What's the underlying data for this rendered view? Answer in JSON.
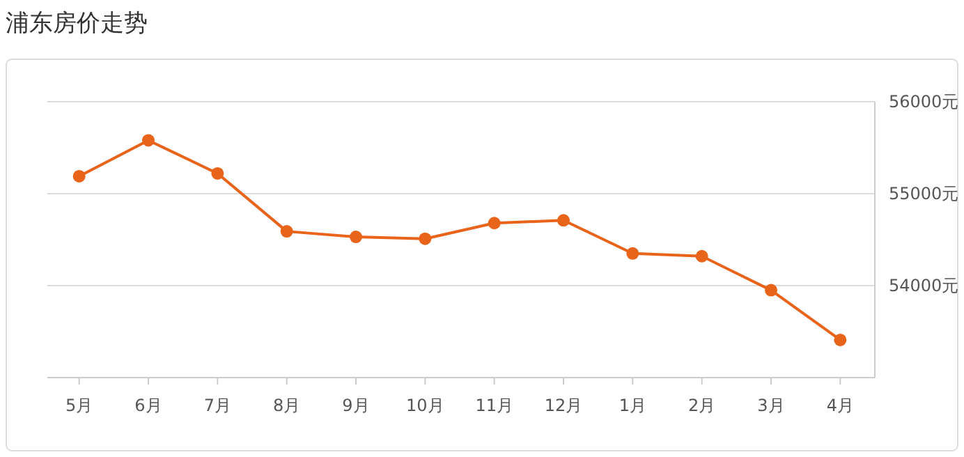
{
  "chart_data": {
    "type": "line",
    "title": "浦东房价走势",
    "categories": [
      "5月",
      "6月",
      "7月",
      "8月",
      "9月",
      "10月",
      "11月",
      "12月",
      "1月",
      "2月",
      "3月",
      "4月"
    ],
    "values": [
      55190,
      55580,
      55220,
      54590,
      54530,
      54510,
      54680,
      54710,
      54350,
      54320,
      53950,
      53410
    ],
    "color": "#e8641b",
    "marker": "circle",
    "grid": "y",
    "ylim": [
      53000,
      56000
    ],
    "yticks": [
      {
        "value": 53000,
        "label": null
      },
      {
        "value": 54000,
        "label": "54000元"
      },
      {
        "value": 55000,
        "label": "55000元"
      },
      {
        "value": 56000,
        "label": "56000元"
      }
    ]
  }
}
